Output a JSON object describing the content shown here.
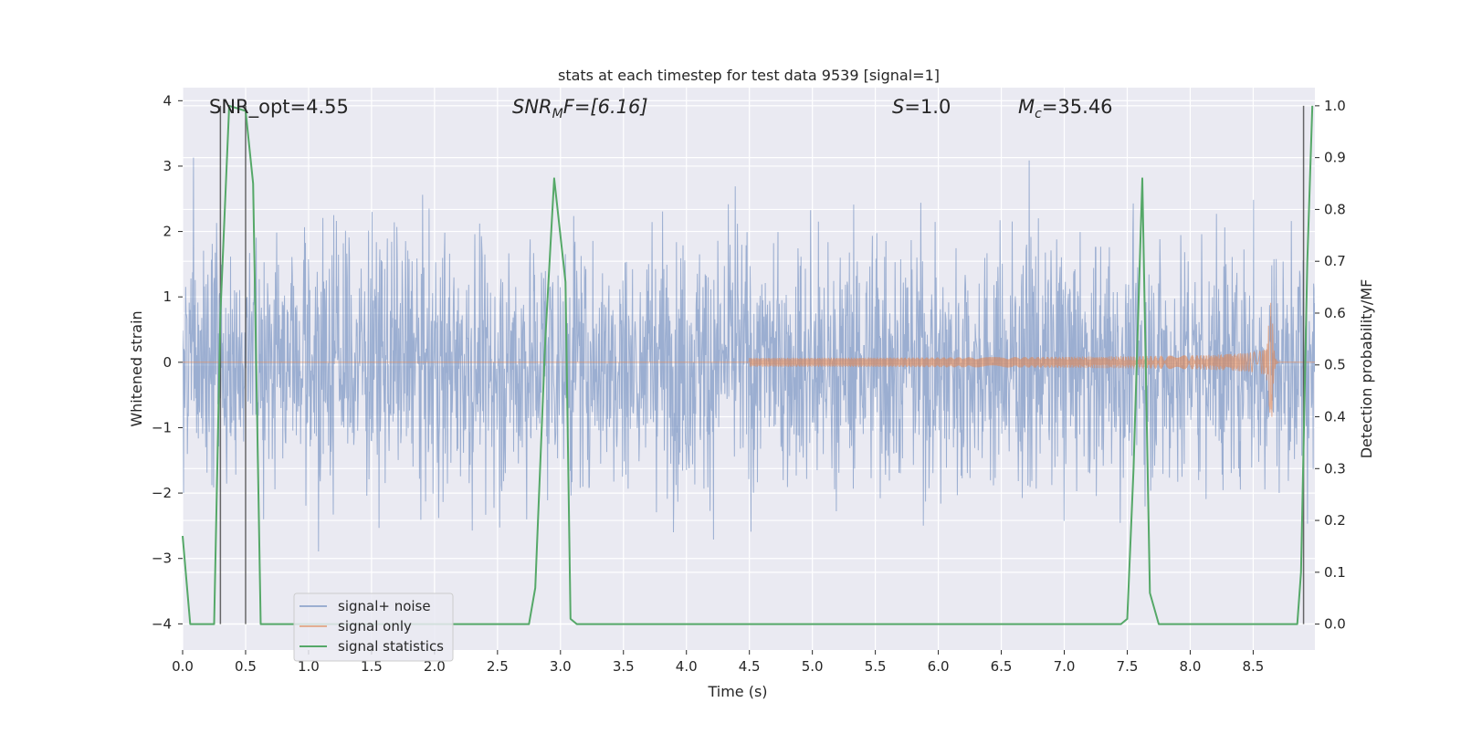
{
  "chart_data": {
    "type": "line",
    "title": "stats at each timestep for test data 9539 [signal=1]",
    "xlabel": "Time (s)",
    "ylabel_left": "Whitened strain",
    "ylabel_right": "Detection probability/MF",
    "xlim": [
      0.0,
      8.99
    ],
    "ylim_left": [
      -4.4,
      4.2
    ],
    "ylim_right": [
      -0.05,
      1.035
    ],
    "x_ticks": [
      "0.0",
      "0.5",
      "1.0",
      "1.5",
      "2.0",
      "2.5",
      "3.0",
      "3.5",
      "4.0",
      "4.5",
      "5.0",
      "5.5",
      "6.0",
      "6.5",
      "7.0",
      "7.5",
      "8.0",
      "8.5"
    ],
    "y_ticks_left": [
      "4",
      "3",
      "2",
      "1",
      "0",
      "−1",
      "−2",
      "−3",
      "−4"
    ],
    "y_ticks_right": [
      "1.0",
      "0.9",
      "0.8",
      "0.7",
      "0.6",
      "0.5",
      "0.4",
      "0.3",
      "0.2",
      "0.1",
      "0.0"
    ],
    "grid": true,
    "legend_position": "lower-left",
    "annotations": {
      "snr_opt": "SNR_opt=4.55",
      "snr_mf_main": "SNR",
      "snr_mf_sub": "M",
      "snr_mf_rest": "F=[6.16]",
      "s_main": "S",
      "s_rest": "=1.0",
      "mc_main": "M",
      "mc_sub": "c",
      "mc_rest": "=35.46"
    },
    "series": [
      {
        "name": "signal+ noise",
        "axis": "left",
        "color": "#4c72b0",
        "alpha": 0.5,
        "description_values": "whitened noisy strain, approx. Gaussian with spread about ±1.5, peaks to about ±4"
      },
      {
        "name": "signal only",
        "axis": "left",
        "color": "#dd8452",
        "alpha": 0.6,
        "chirp": {
          "merger_time": 8.65,
          "peak_amplitude": 1.1,
          "start_time": 4.5
        }
      },
      {
        "name": "signal statistics",
        "axis": "right",
        "color": "#55a868",
        "x": [
          0.0,
          0.06,
          0.25,
          0.3,
          0.37,
          0.5,
          0.56,
          0.62,
          2.75,
          2.8,
          2.88,
          2.95,
          3.04,
          3.08,
          3.13,
          7.45,
          7.5,
          7.55,
          7.62,
          7.68,
          7.75,
          8.85,
          8.88,
          8.93,
          8.97
        ],
        "y": [
          0.17,
          0.0,
          0.0,
          0.6,
          1.0,
          0.99,
          0.85,
          0.0,
          0.0,
          0.07,
          0.55,
          0.86,
          0.66,
          0.01,
          0.0,
          0.0,
          0.01,
          0.3,
          0.86,
          0.06,
          0.0,
          0.0,
          0.1,
          0.7,
          1.0
        ]
      }
    ],
    "vertical_lines": [
      0.3,
      0.5,
      8.9
    ]
  }
}
